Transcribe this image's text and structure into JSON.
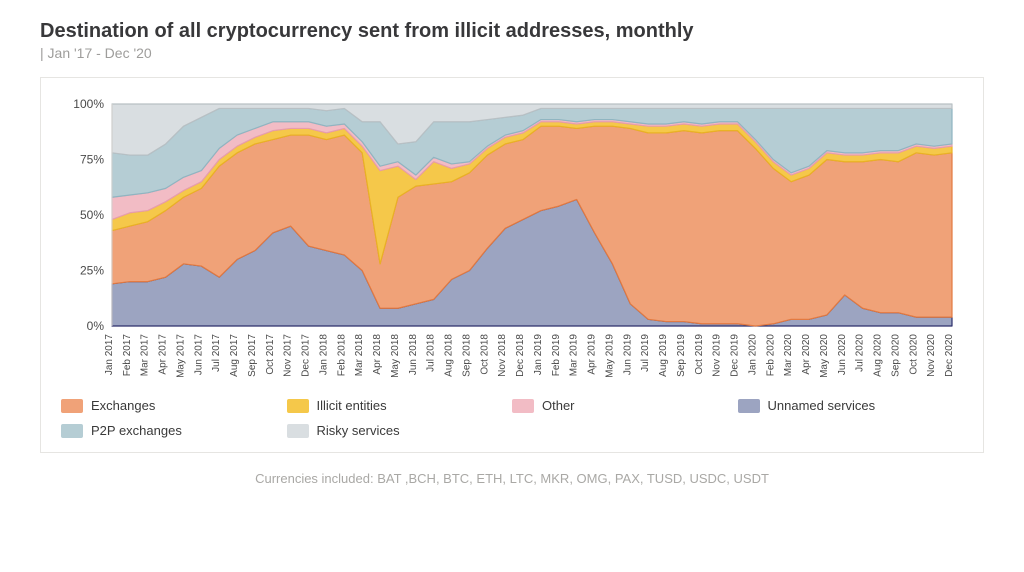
{
  "title": "Destination of all cryptocurrency sent from illicit addresses, monthly",
  "subtitle": "| Jan '17 - Dec '20",
  "footnote": "Currencies included: BAT ,BCH, BTC, ETH, LTC, MKR, OMG, PAX, TUSD, USDC, USDT",
  "chart": {
    "type": "stacked-area",
    "background_color": "#ffffff",
    "plot_border_color": "#e6e5e2",
    "ylim": [
      0,
      100
    ],
    "ytick_step": 25,
    "ytick_format": "percent",
    "grid_color": "#d4d2cf",
    "title_fontsize": 20,
    "label_fontsize": 12,
    "xlabel_fontsize": 10,
    "categories": [
      "Jan 2017",
      "Feb 2017",
      "Mar 2017",
      "Apr 2017",
      "May 2017",
      "Jun 2017",
      "Jul 2017",
      "Aug 2017",
      "Sep 2017",
      "Oct 2017",
      "Nov 2017",
      "Dec 2017",
      "Jan 2018",
      "Feb 2018",
      "Mar 2018",
      "Apr 2018",
      "May 2018",
      "Jun 2018",
      "Jul 2018",
      "Aug 2018",
      "Sep 2018",
      "Oct 2018",
      "Nov 2018",
      "Dec 2018",
      "Jan 2019",
      "Feb 2019",
      "Mar 2019",
      "Apr 2019",
      "May 2019",
      "Jun 2019",
      "Jul 2019",
      "Aug 2019",
      "Sep 2019",
      "Oct 2019",
      "Nov 2019",
      "Dec 2019",
      "Jan 2020",
      "Feb 2020",
      "Mar 2020",
      "Apr 2020",
      "May 2020",
      "Jun 2020",
      "Jul 2020",
      "Aug 2020",
      "Sep 2020",
      "Oct 2020",
      "Nov 2020",
      "Dec 2020"
    ],
    "stack_order": [
      "unnamed_services",
      "exchanges",
      "illicit_entities",
      "other",
      "p2p_exchanges",
      "risky_services"
    ],
    "series": {
      "unnamed_services": {
        "label": "Unnamed services",
        "fill": "#9ca4c1",
        "stroke": "#2c2f6b",
        "values": [
          19,
          20,
          20,
          22,
          28,
          27,
          22,
          30,
          34,
          42,
          45,
          36,
          34,
          32,
          25,
          8,
          8,
          10,
          12,
          21,
          25,
          35,
          44,
          48,
          52,
          54,
          57,
          42,
          28,
          10,
          3,
          2,
          2,
          1,
          1,
          1,
          0,
          1,
          3,
          3,
          5,
          14,
          8,
          6,
          6,
          4,
          4,
          4
        ]
      },
      "exchanges": {
        "label": "Exchanges",
        "fill": "#f0a278",
        "stroke": "#e37a41",
        "values": [
          24,
          25,
          27,
          30,
          30,
          35,
          50,
          48,
          48,
          42,
          41,
          50,
          50,
          54,
          53,
          20,
          50,
          53,
          52,
          44,
          44,
          42,
          38,
          36,
          38,
          36,
          32,
          48,
          62,
          79,
          84,
          85,
          86,
          86,
          87,
          87,
          80,
          70,
          62,
          65,
          70,
          60,
          66,
          69,
          68,
          74,
          73,
          74
        ]
      },
      "illicit_entities": {
        "label": "Illicit entities",
        "fill": "#f5c84a",
        "stroke": "#e9b224",
        "values": [
          5,
          6,
          5,
          4,
          3,
          3,
          3,
          3,
          3,
          4,
          3,
          3,
          3,
          3,
          3,
          42,
          14,
          3,
          10,
          6,
          4,
          3,
          3,
          3,
          2,
          2,
          2,
          2,
          2,
          2,
          3,
          3,
          3,
          3,
          3,
          3,
          3,
          3,
          3,
          3,
          3,
          3,
          3,
          3,
          4,
          3,
          3,
          3
        ]
      },
      "other": {
        "label": "Other",
        "fill": "#f2bcc5",
        "stroke": "#e79dad",
        "values": [
          10,
          8,
          8,
          6,
          6,
          5,
          5,
          5,
          4,
          4,
          3,
          3,
          3,
          2,
          2,
          2,
          2,
          2,
          2,
          2,
          1,
          1,
          1,
          1,
          1,
          1,
          1,
          1,
          1,
          1,
          1,
          1,
          1,
          1,
          1,
          1,
          1,
          1,
          1,
          1,
          1,
          1,
          1,
          1,
          1,
          1,
          1,
          1
        ]
      },
      "p2p_exchanges": {
        "label": "P2P exchanges",
        "fill": "#b5cdd4",
        "stroke": "#8fb5c1",
        "values": [
          20,
          18,
          17,
          20,
          23,
          24,
          18,
          12,
          9,
          6,
          6,
          6,
          7,
          7,
          9,
          20,
          8,
          15,
          16,
          19,
          18,
          12,
          8,
          7,
          5,
          5,
          6,
          5,
          5,
          6,
          7,
          7,
          6,
          7,
          6,
          6,
          14,
          23,
          29,
          26,
          19,
          20,
          20,
          19,
          19,
          16,
          17,
          16
        ]
      },
      "risky_services": {
        "label": "Risky services",
        "fill": "#d9dee1",
        "stroke": "#b9c0c4",
        "values": [
          22,
          23,
          23,
          18,
          10,
          6,
          2,
          2,
          2,
          2,
          2,
          2,
          3,
          2,
          8,
          8,
          18,
          17,
          8,
          8,
          8,
          7,
          6,
          5,
          2,
          2,
          2,
          2,
          2,
          2,
          2,
          2,
          2,
          2,
          2,
          2,
          2,
          2,
          2,
          2,
          2,
          2,
          2,
          2,
          2,
          2,
          2,
          2
        ]
      }
    },
    "legend": [
      {
        "key": "exchanges",
        "label": "Exchanges"
      },
      {
        "key": "illicit_entities",
        "label": "Illicit entities"
      },
      {
        "key": "other",
        "label": "Other"
      },
      {
        "key": "unnamed_services",
        "label": "Unnamed services"
      },
      {
        "key": "p2p_exchanges",
        "label": "P2P exchanges"
      },
      {
        "key": "risky_services",
        "label": "Risky services"
      }
    ]
  }
}
